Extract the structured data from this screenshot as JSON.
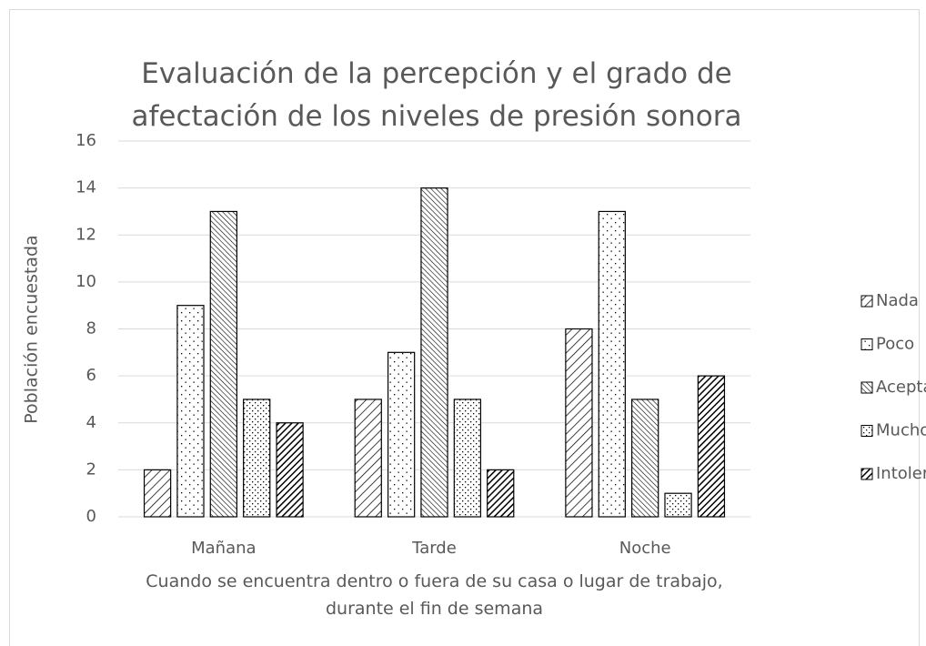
{
  "chart_data": {
    "type": "bar",
    "title": "Evaluación de la percepción y el grado de afectación de los niveles de presión sonora",
    "x_label": "Cuando se encuentra dentro o fuera de su casa o lugar de trabajo, durante el fin de semana",
    "y_label": "Población encuestada",
    "categories": [
      "Mañana",
      "Tarde",
      "Noche"
    ],
    "series": [
      {
        "name": "Nada",
        "color": "#000000",
        "pattern": "wide-downward-diagonal",
        "values": [
          2,
          5,
          8
        ]
      },
      {
        "name": "Poco",
        "color": "#000000",
        "pattern": "sparse-dots",
        "values": [
          9,
          7,
          13
        ]
      },
      {
        "name": "Aceptable",
        "color": "#000000",
        "pattern": "dense-upward-diagonal",
        "values": [
          13,
          14,
          5
        ]
      },
      {
        "name": "Mucho",
        "color": "#000000",
        "pattern": "dense-dots",
        "values": [
          5,
          5,
          1
        ]
      },
      {
        "name": "Intolerable",
        "color": "#000000",
        "pattern": "dark-downward-diagonal",
        "values": [
          4,
          2,
          6
        ]
      }
    ],
    "ylim": [
      0,
      16
    ],
    "yticks": [
      0,
      2,
      4,
      6,
      8,
      10,
      12,
      14,
      16
    ],
    "grid": true,
    "legend": "right"
  }
}
